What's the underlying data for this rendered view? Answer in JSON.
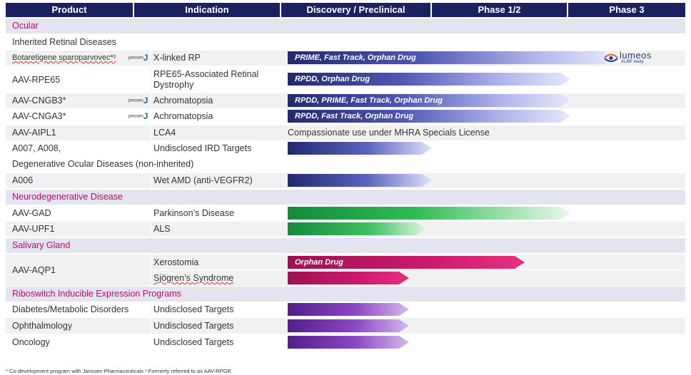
{
  "headers": [
    "Product",
    "Indication",
    "Discovery / Preclinical",
    "Phase 1/2",
    "Phase 3"
  ],
  "categories": {
    "ocular": "Ocular",
    "inherited": "Inherited Retinal Diseases",
    "degenerative": "Degenerative Ocular Diseases (non-inherited)",
    "neuro": "Neurodegenerative Disease",
    "salivary": "Salivary Gland",
    "riboswitch": "Riboswitch Inducible Expression Programs"
  },
  "rows": [
    {
      "product": "Botaretigene sparoparvovec*¹",
      "indication": "X-linked RP",
      "partner": "janssen",
      "bar_label": "PRIME, Fast Track, Orphan Drug"
    },
    {
      "product": "AAV-RPE65",
      "indication": "RPE65-Associated Retinal Dystrophy",
      "bar_label": "RPDD, Orphan Drug"
    },
    {
      "product": "AAV-CNGB3*",
      "indication": "Achromatopsia",
      "partner": "janssen",
      "bar_label": "RPDD, PRIME, Fast Track, Orphan Drug"
    },
    {
      "product": "AAV-CNGA3*",
      "indication": "Achromatopsia",
      "partner": "janssen",
      "bar_label": "RPDD, Fast Track, Orphan Drug"
    },
    {
      "product": "AAV-AIPL1",
      "indication": "LCA4",
      "status_text": "Compassionate use under MHRA Specials License"
    },
    {
      "product": "A007, A008,",
      "indication": "Undisclosed IRD Targets"
    },
    {
      "product": "A006",
      "indication": "Wet AMD (anti-VEGFR2)"
    },
    {
      "product": "AAV-GAD",
      "indication": "Parkinson’s Disease"
    },
    {
      "product": "AAV-UPF1",
      "indication": "ALS"
    },
    {
      "product": "AAV-AQP1",
      "indication": "Xerostomia",
      "indication2": "Sjögren’s Syndrome",
      "bar_label": "Orphan Drug"
    },
    {
      "product": "Diabetes/Metabolic Disorders",
      "indication": "Undisclosed Targets"
    },
    {
      "product": "Ophthalmology",
      "indication": "Undisclosed Targets"
    },
    {
      "product": "Oncology",
      "indication": "Undisclosed Targets"
    }
  ],
  "partner_logo": {
    "text": "janssen",
    "glyph": "J"
  },
  "lumeos": {
    "name": "lumeos",
    "subtitle": "XLRP study"
  },
  "footnote": "* Co-development program with Janssen Pharmaceuticals  ¹ Formerly referred to as AAV-RPGR",
  "colors": {
    "header": "#1b2160",
    "category_text": "#b5125f",
    "category_bg": "#e4e4f0",
    "blue": "#23296e",
    "green": "#138a3a",
    "pink": "#cc1a6c",
    "purple": "#8a46c4"
  }
}
